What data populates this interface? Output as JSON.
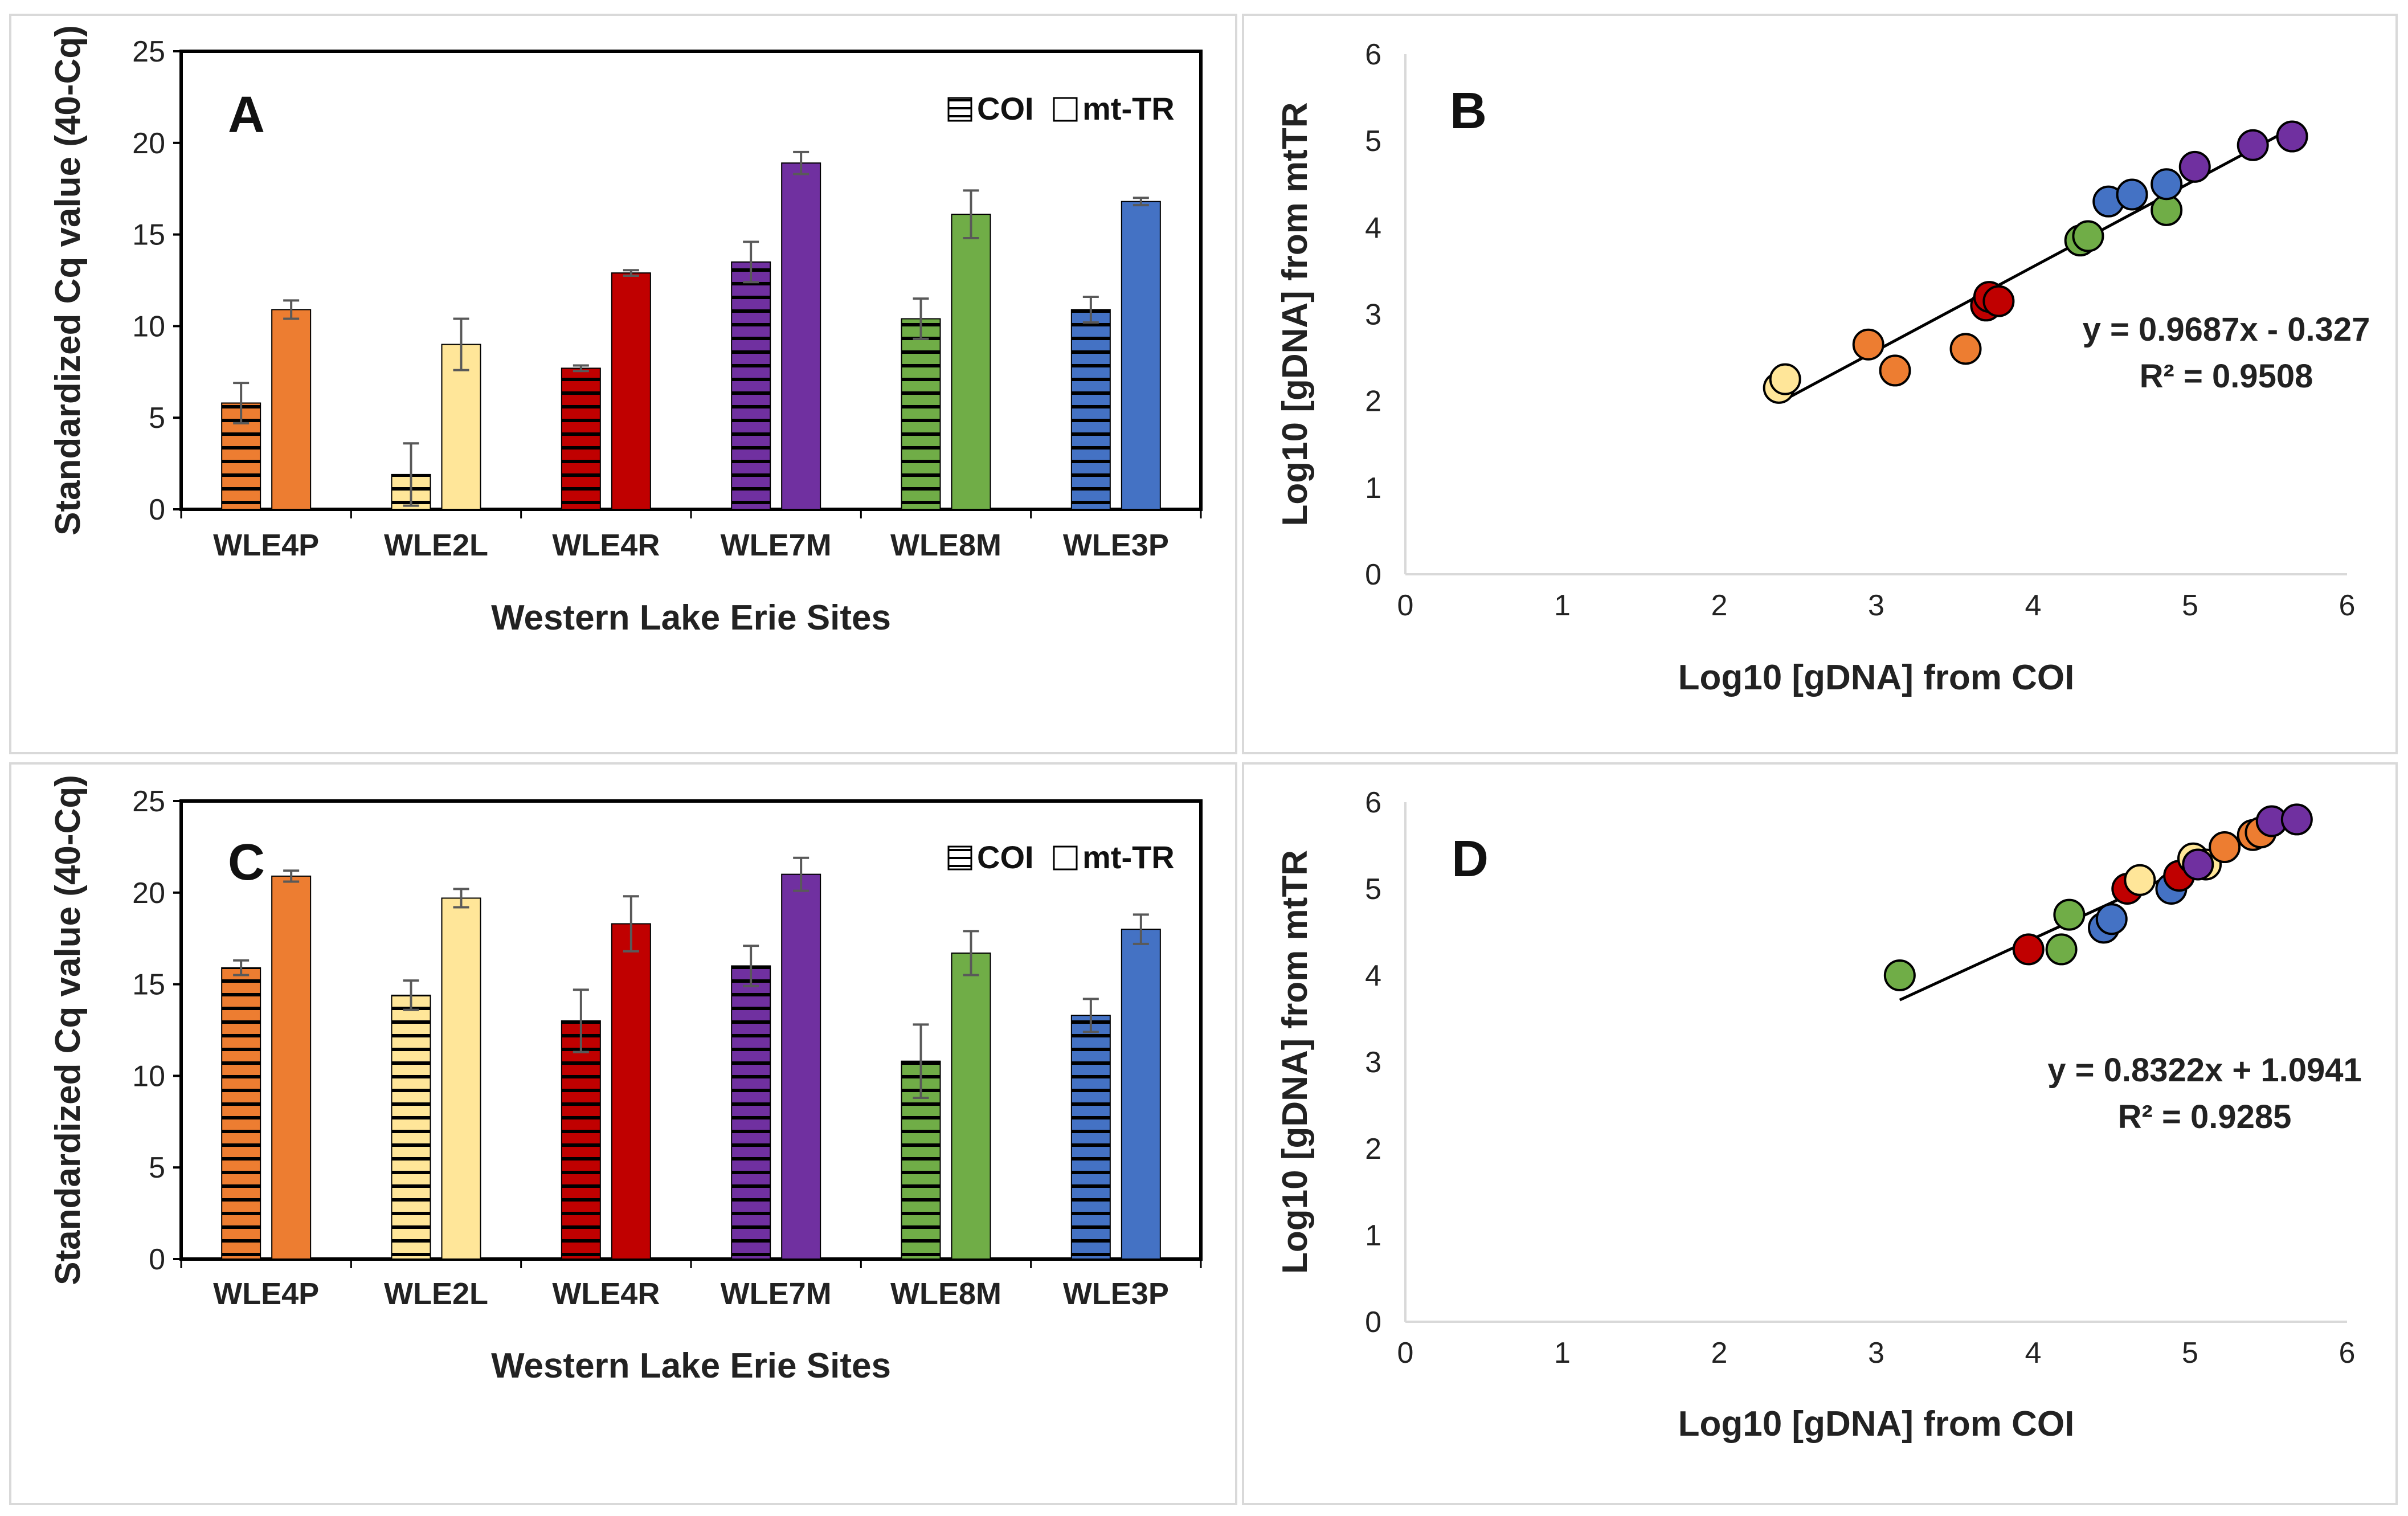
{
  "figure": {
    "colors": {
      "WLE4P": "#ED7D31",
      "WLE2L": "#FFE699",
      "WLE4R": "#C00000",
      "WLE7M": "#7030A0",
      "WLE8M": "#70AD47",
      "WLE3P": "#4472C4",
      "frame": "#000000",
      "gridline": "#d9d9d9",
      "border": "#d9d9d9"
    }
  },
  "chart_data": [
    {
      "panel": "A",
      "type": "bar",
      "categories": [
        "WLE4P",
        "WLE2L",
        "WLE4R",
        "WLE7M",
        "WLE8M",
        "WLE3P"
      ],
      "series": [
        {
          "name": "COI",
          "pattern": "horizontal-stripes",
          "values": [
            5.8,
            1.9,
            7.7,
            13.5,
            10.4,
            10.9
          ],
          "errors": [
            1.1,
            1.7,
            0.15,
            1.1,
            1.1,
            0.7
          ]
        },
        {
          "name": "mt-TR",
          "pattern": "solid",
          "values": [
            10.9,
            9.0,
            12.9,
            18.9,
            16.1,
            16.8
          ],
          "errors": [
            0.5,
            1.4,
            0.15,
            0.6,
            1.3,
            0.2
          ]
        }
      ],
      "legend": [
        "COI",
        "mt-TR"
      ],
      "title": "A",
      "xlabel": "Western Lake Erie Sites",
      "ylabel": "Standardized Cq value (40-Cq)",
      "ylim": [
        0,
        25
      ],
      "yticks": [
        "0",
        "5",
        "10",
        "15",
        "20",
        "25"
      ]
    },
    {
      "panel": "B",
      "type": "scatter",
      "points": [
        {
          "site": "WLE2L",
          "x": 2.38,
          "y": 2.15
        },
        {
          "site": "WLE2L",
          "x": 2.42,
          "y": 2.25
        },
        {
          "site": "WLE4P",
          "x": 2.95,
          "y": 2.65
        },
        {
          "site": "WLE4P",
          "x": 3.12,
          "y": 2.35
        },
        {
          "site": "WLE4P",
          "x": 3.57,
          "y": 2.6
        },
        {
          "site": "WLE4R",
          "x": 3.7,
          "y": 3.1
        },
        {
          "site": "WLE4R",
          "x": 3.72,
          "y": 3.2
        },
        {
          "site": "WLE4R",
          "x": 3.78,
          "y": 3.15
        },
        {
          "site": "WLE8M",
          "x": 4.3,
          "y": 3.85
        },
        {
          "site": "WLE8M",
          "x": 4.35,
          "y": 3.9
        },
        {
          "site": "WLE8M",
          "x": 4.85,
          "y": 4.2
        },
        {
          "site": "WLE3P",
          "x": 4.48,
          "y": 4.3
        },
        {
          "site": "WLE3P",
          "x": 4.63,
          "y": 4.38
        },
        {
          "site": "WLE3P",
          "x": 4.85,
          "y": 4.5
        },
        {
          "site": "WLE7M",
          "x": 5.03,
          "y": 4.7
        },
        {
          "site": "WLE7M",
          "x": 5.4,
          "y": 4.95
        },
        {
          "site": "WLE7M",
          "x": 5.65,
          "y": 5.05
        }
      ],
      "trendline": {
        "slope": 0.9687,
        "intercept": -0.327,
        "xrange": [
          2.4,
          5.65
        ]
      },
      "equation": "y = 0.9687x - 0.327",
      "r2": "R² = 0.9508",
      "title": "B",
      "xlabel": "Log10 [gDNA] from COI",
      "ylabel": "Log10 [gDNA] from mtTR",
      "xlim": [
        0,
        6
      ],
      "ylim": [
        0,
        6
      ],
      "xticks": [
        "0",
        "1",
        "2",
        "3",
        "4",
        "5",
        "6"
      ],
      "yticks": [
        "0",
        "1",
        "2",
        "3",
        "4",
        "5",
        "6"
      ]
    },
    {
      "panel": "C",
      "type": "bar",
      "categories": [
        "WLE4P",
        "WLE2L",
        "WLE4R",
        "WLE7M",
        "WLE8M",
        "WLE3P"
      ],
      "series": [
        {
          "name": "COI",
          "pattern": "horizontal-stripes",
          "values": [
            15.9,
            14.4,
            13.0,
            16.0,
            10.8,
            13.3
          ],
          "errors": [
            0.4,
            0.8,
            1.7,
            1.1,
            2.0,
            0.9
          ]
        },
        {
          "name": "mt-TR",
          "pattern": "solid",
          "values": [
            20.9,
            19.7,
            18.3,
            21.0,
            16.7,
            18.0
          ],
          "errors": [
            0.3,
            0.5,
            1.5,
            0.9,
            1.2,
            0.8
          ]
        }
      ],
      "legend": [
        "COI",
        "mt-TR"
      ],
      "title": "C",
      "xlabel": "Western Lake Erie Sites",
      "ylabel": "Standardized Cq value (40-Cq)",
      "ylim": [
        0,
        25
      ],
      "yticks": [
        "0",
        "5",
        "10",
        "15",
        "20",
        "25"
      ]
    },
    {
      "panel": "D",
      "type": "scatter",
      "points": [
        {
          "site": "WLE8M",
          "x": 3.15,
          "y": 4.0
        },
        {
          "site": "WLE4R",
          "x": 3.97,
          "y": 4.3
        },
        {
          "site": "WLE8M",
          "x": 4.18,
          "y": 4.3
        },
        {
          "site": "WLE8M",
          "x": 4.23,
          "y": 4.7
        },
        {
          "site": "WLE3P",
          "x": 4.45,
          "y": 4.55
        },
        {
          "site": "WLE3P",
          "x": 4.5,
          "y": 4.65
        },
        {
          "site": "WLE4R",
          "x": 4.6,
          "y": 5.0
        },
        {
          "site": "WLE2L",
          "x": 4.68,
          "y": 5.1
        },
        {
          "site": "WLE3P",
          "x": 4.88,
          "y": 5.0
        },
        {
          "site": "WLE4R",
          "x": 4.93,
          "y": 5.15
        },
        {
          "site": "WLE2L",
          "x": 5.02,
          "y": 5.35
        },
        {
          "site": "WLE2L",
          "x": 5.1,
          "y": 5.28
        },
        {
          "site": "WLE7M",
          "x": 5.05,
          "y": 5.28
        },
        {
          "site": "WLE4P",
          "x": 5.22,
          "y": 5.48
        },
        {
          "site": "WLE4P",
          "x": 5.4,
          "y": 5.62
        },
        {
          "site": "WLE4P",
          "x": 5.45,
          "y": 5.65
        },
        {
          "site": "WLE7M",
          "x": 5.52,
          "y": 5.78
        },
        {
          "site": "WLE7M",
          "x": 5.68,
          "y": 5.8
        }
      ],
      "trendline": {
        "slope": 0.8322,
        "intercept": 1.0941,
        "xrange": [
          3.15,
          5.7
        ]
      },
      "equation": "y = 0.8322x + 1.0941",
      "r2": "R² = 0.9285",
      "title": "D",
      "xlabel": "Log10 [gDNA] from COI",
      "ylabel": "Log10 [gDNA] from mtTR",
      "xlim": [
        0,
        6
      ],
      "ylim": [
        0,
        6
      ],
      "xticks": [
        "0",
        "1",
        "2",
        "3",
        "4",
        "5",
        "6"
      ],
      "yticks": [
        "0",
        "1",
        "2",
        "3",
        "4",
        "5",
        "6"
      ]
    }
  ]
}
